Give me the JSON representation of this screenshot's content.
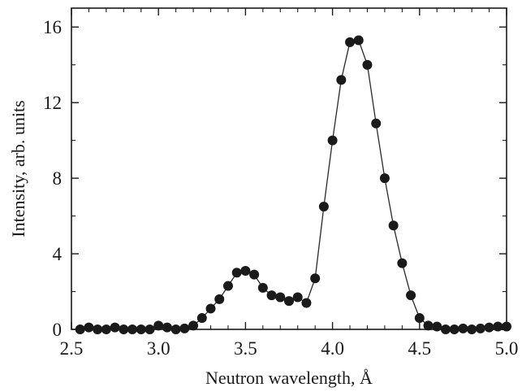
{
  "chart_data": {
    "type": "line",
    "title": "",
    "xlabel": "Neutron wavelength, Å",
    "ylabel": "Intensity, arb. units",
    "xlim": [
      2.5,
      5.0
    ],
    "ylim": [
      0,
      17
    ],
    "grid": false,
    "legend": "none",
    "x_ticks": [
      2.5,
      3.0,
      3.5,
      4.0,
      4.5,
      5.0
    ],
    "x_tick_labels": [
      "2.5",
      "3.0",
      "3.5",
      "4.0",
      "4.5",
      "5.0"
    ],
    "y_ticks": [
      0,
      4,
      8,
      12,
      16
    ],
    "y_tick_labels": [
      "0",
      "4",
      "8",
      "12",
      "16"
    ],
    "series": [
      {
        "marker": "filled-circle",
        "color": "#1a1a1a",
        "x": [
          2.55,
          2.6,
          2.65,
          2.7,
          2.75,
          2.8,
          2.85,
          2.9,
          2.95,
          3.0,
          3.05,
          3.1,
          3.15,
          3.2,
          3.25,
          3.3,
          3.35,
          3.4,
          3.45,
          3.5,
          3.55,
          3.6,
          3.65,
          3.7,
          3.75,
          3.8,
          3.85,
          3.9,
          3.95,
          4.0,
          4.05,
          4.1,
          4.15,
          4.2,
          4.25,
          4.3,
          4.35,
          4.4,
          4.45,
          4.5,
          4.55,
          4.6,
          4.65,
          4.7,
          4.75,
          4.8,
          4.85,
          4.9,
          4.95,
          5.0
        ],
        "y": [
          0.0,
          0.1,
          0.0,
          0.0,
          0.1,
          0.0,
          0.0,
          0.0,
          0.0,
          0.2,
          0.1,
          0.0,
          0.05,
          0.2,
          0.6,
          1.1,
          1.6,
          2.3,
          3.0,
          3.1,
          2.9,
          2.2,
          1.8,
          1.7,
          1.5,
          1.7,
          1.4,
          2.7,
          6.5,
          10.0,
          13.2,
          15.2,
          15.3,
          14.0,
          10.9,
          8.0,
          5.5,
          3.5,
          1.8,
          0.6,
          0.2,
          0.15,
          0.0,
          0.0,
          0.05,
          0.0,
          0.05,
          0.1,
          0.15,
          0.15
        ]
      }
    ]
  }
}
